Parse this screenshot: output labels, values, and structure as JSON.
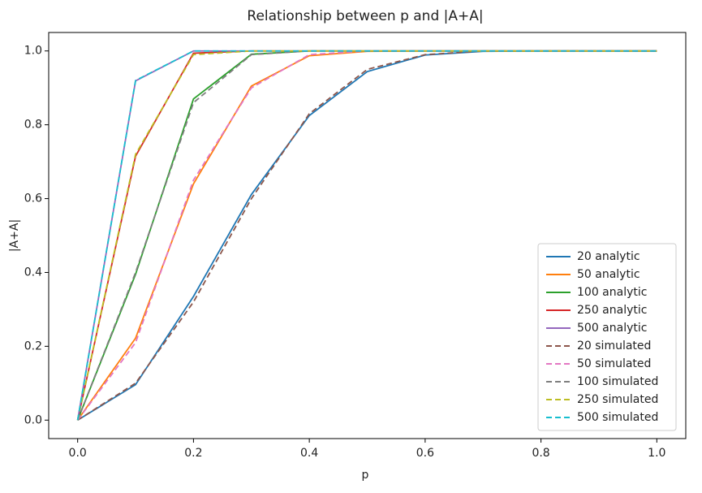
{
  "chart_data": {
    "type": "line",
    "title": "Relationship between p and |A+A|",
    "xlabel": "p",
    "ylabel": "|A+A|",
    "x": [
      0,
      0.1,
      0.2,
      0.3,
      0.4,
      0.5,
      0.6,
      0.7,
      0.8,
      0.9,
      1
    ],
    "series": [
      {
        "name": "20 analytic",
        "color": "#1f77b4",
        "linestyle": "solid",
        "values": [
          0,
          0.096,
          0.335,
          0.611,
          0.825,
          0.944,
          0.989,
          0.999,
          1,
          1,
          1
        ]
      },
      {
        "name": "50 analytic",
        "color": "#ff7f0e",
        "linestyle": "solid",
        "values": [
          0,
          0.222,
          0.64,
          0.905,
          0.987,
          0.999,
          1,
          1,
          1,
          1,
          1
        ]
      },
      {
        "name": "100 analytic",
        "color": "#2ca02c",
        "linestyle": "solid",
        "values": [
          0,
          0.395,
          0.87,
          0.991,
          1,
          1,
          1,
          1,
          1,
          1,
          1
        ]
      },
      {
        "name": "250 analytic",
        "color": "#d62728",
        "linestyle": "solid",
        "values": [
          0,
          0.715,
          0.994,
          1,
          1,
          1,
          1,
          1,
          1,
          1,
          1
        ]
      },
      {
        "name": "500 analytic",
        "color": "#9467bd",
        "linestyle": "solid",
        "values": [
          0,
          0.919,
          1,
          1,
          1,
          1,
          1,
          1,
          1,
          1,
          1
        ]
      },
      {
        "name": "20 simulated",
        "color": "#8c564b",
        "linestyle": "dashed",
        "values": [
          0,
          0.1,
          0.32,
          0.6,
          0.83,
          0.95,
          0.99,
          1,
          1,
          1,
          1
        ]
      },
      {
        "name": "50 simulated",
        "color": "#e377c2",
        "linestyle": "dashed",
        "values": [
          0,
          0.21,
          0.65,
          0.9,
          0.99,
          1,
          1,
          1,
          1,
          1,
          1
        ]
      },
      {
        "name": "100 simulated",
        "color": "#7f7f7f",
        "linestyle": "dashed",
        "values": [
          0,
          0.4,
          0.86,
          0.99,
          1,
          1,
          1,
          1,
          1,
          1,
          1
        ]
      },
      {
        "name": "250 simulated",
        "color": "#bcbd22",
        "linestyle": "dashed",
        "values": [
          0,
          0.72,
          0.99,
          1,
          1,
          1,
          1,
          1,
          1,
          1,
          1
        ]
      },
      {
        "name": "500 simulated",
        "color": "#17becf",
        "linestyle": "dashed",
        "values": [
          0,
          0.92,
          1,
          1,
          1,
          1,
          1,
          1,
          1,
          1,
          1
        ]
      }
    ],
    "xlim": [
      -0.05,
      1.05
    ],
    "ylim": [
      -0.05,
      1.05
    ],
    "xticks": [
      {
        "value": 0,
        "label": "0.0"
      },
      0.2,
      0.4,
      0.6,
      0.8,
      {
        "value": 1,
        "label": "1.0"
      }
    ],
    "yticks": [
      {
        "value": 0,
        "label": "0.0"
      },
      0.2,
      0.4,
      0.6,
      0.8,
      {
        "value": 1,
        "label": "1.0"
      }
    ],
    "legend": "lower right"
  }
}
